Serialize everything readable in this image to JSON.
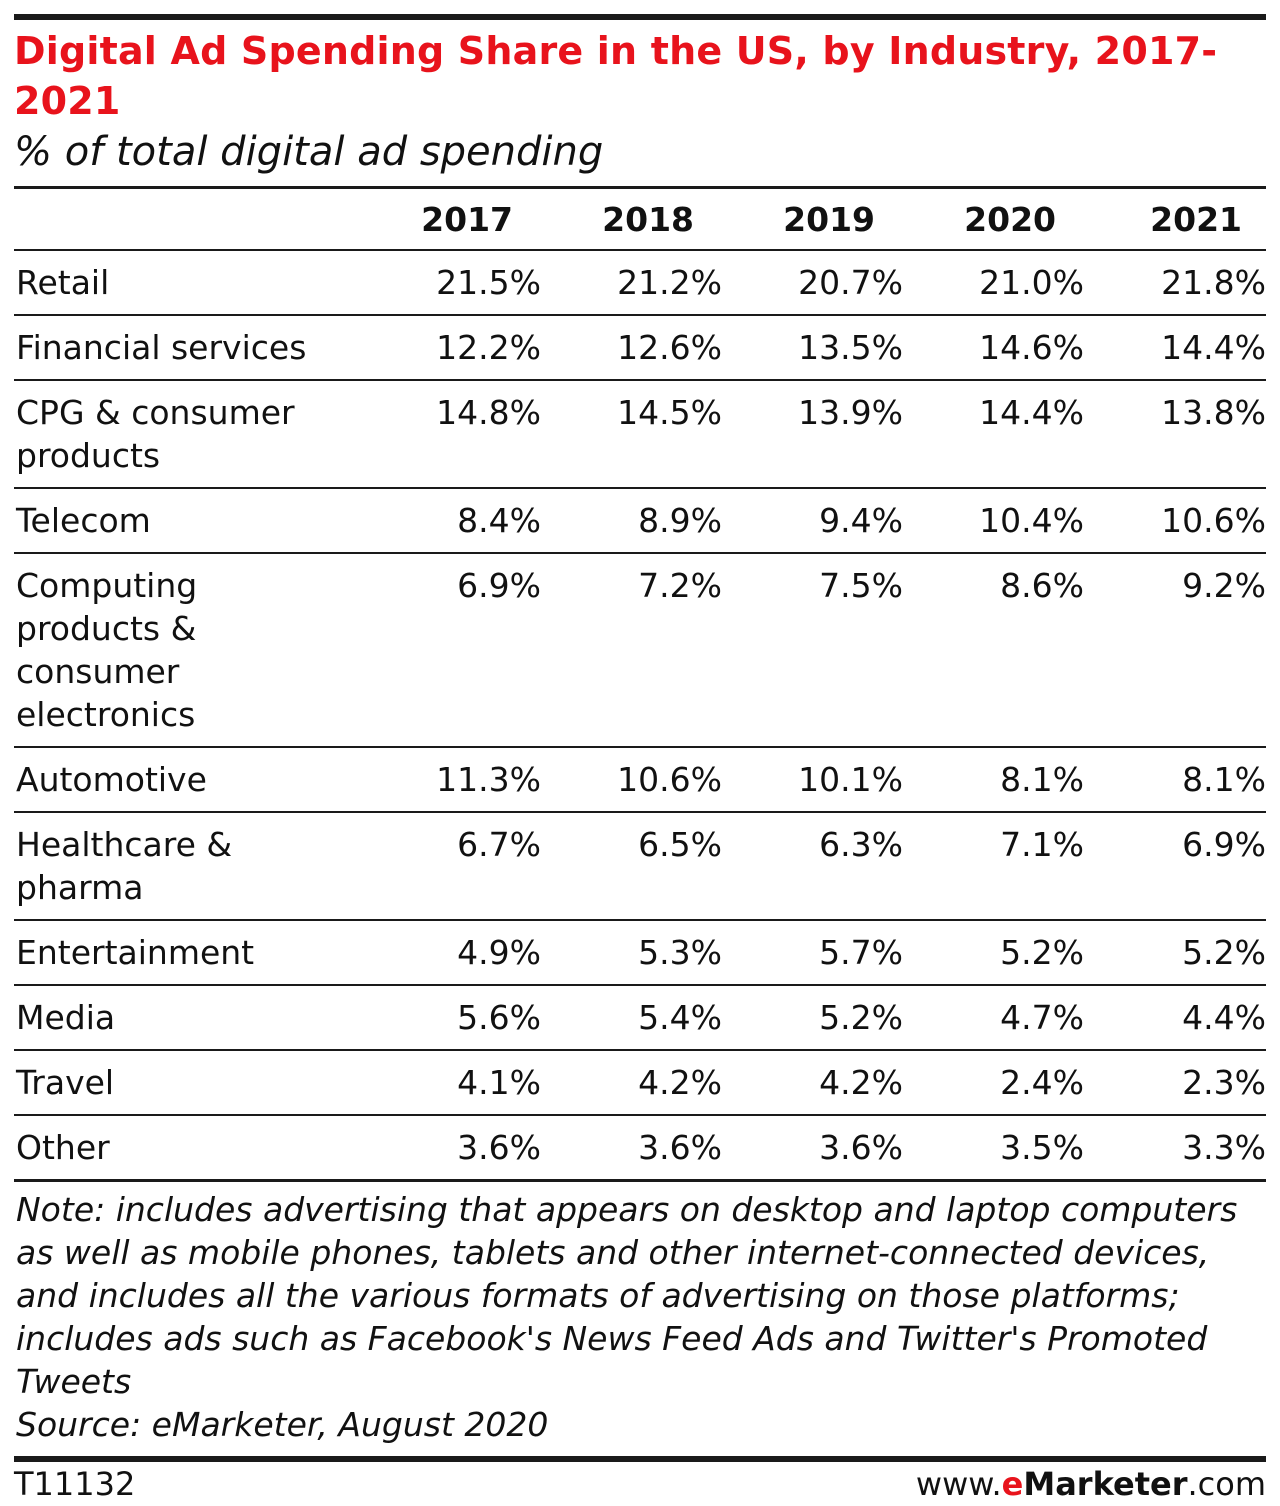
{
  "title": "Digital Ad Spending Share in the US, by Industry, 2017-2021",
  "subtitle": "% of total digital ad spending",
  "chart_data": {
    "type": "table",
    "title": "Digital Ad Spending Share in the US, by Industry, 2017-2021",
    "subtitle": "% of total digital ad spending",
    "columns": [
      "2017",
      "2018",
      "2019",
      "2020",
      "2021"
    ],
    "rows": [
      {
        "label": "Retail",
        "values": [
          "21.5%",
          "21.2%",
          "20.7%",
          "21.0%",
          "21.8%"
        ]
      },
      {
        "label": "Financial services",
        "values": [
          "12.2%",
          "12.6%",
          "13.5%",
          "14.6%",
          "14.4%"
        ]
      },
      {
        "label": "CPG & consumer products",
        "values": [
          "14.8%",
          "14.5%",
          "13.9%",
          "14.4%",
          "13.8%"
        ]
      },
      {
        "label": "Telecom",
        "values": [
          "8.4%",
          "8.9%",
          "9.4%",
          "10.4%",
          "10.6%"
        ]
      },
      {
        "label": "Computing products & consumer electronics",
        "values": [
          "6.9%",
          "7.2%",
          "7.5%",
          "8.6%",
          "9.2%"
        ]
      },
      {
        "label": "Automotive",
        "values": [
          "11.3%",
          "10.6%",
          "10.1%",
          "8.1%",
          "8.1%"
        ]
      },
      {
        "label": "Healthcare & pharma",
        "values": [
          "6.7%",
          "6.5%",
          "6.3%",
          "7.1%",
          "6.9%"
        ]
      },
      {
        "label": "Entertainment",
        "values": [
          "4.9%",
          "5.3%",
          "5.7%",
          "5.2%",
          "5.2%"
        ]
      },
      {
        "label": "Media",
        "values": [
          "5.6%",
          "5.4%",
          "5.2%",
          "4.7%",
          "4.4%"
        ]
      },
      {
        "label": "Travel",
        "values": [
          "4.1%",
          "4.2%",
          "4.2%",
          "2.4%",
          "2.3%"
        ]
      },
      {
        "label": "Other",
        "values": [
          "3.6%",
          "3.6%",
          "3.6%",
          "3.5%",
          "3.3%"
        ]
      }
    ]
  },
  "note": "Note: includes advertising that appears on desktop and laptop computers as well as mobile phones, tablets and other internet-connected devices, and includes all the various formats of advertising on those platforms; includes ads such as Facebook's News Feed Ads and Twitter's Promoted Tweets",
  "source": "Source: eMarketer, August 2020",
  "footer": {
    "id": "T11132",
    "brand_prefix": "www.",
    "brand_e": "e",
    "brand_name": "Marketer",
    "brand_suffix": ".com"
  },
  "colors": {
    "title": "#e8131c",
    "rules": "#1a1a1a"
  }
}
